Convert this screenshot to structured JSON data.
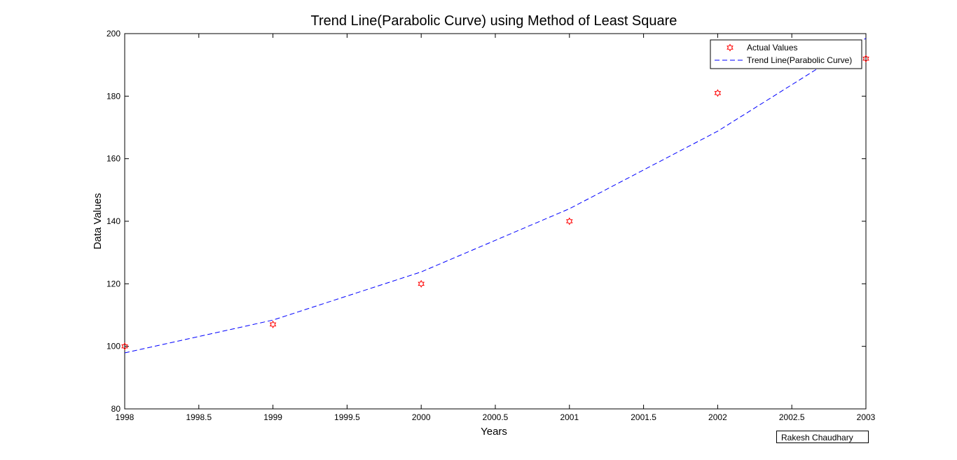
{
  "chart_data": {
    "type": "line",
    "title": "Trend Line(Parabolic Curve) using Method of Least Square",
    "xlabel": "Years",
    "ylabel": "Data Values",
    "xlim": [
      1998,
      2003
    ],
    "ylim": [
      80,
      200
    ],
    "xticks": [
      1998,
      1998.5,
      1999,
      1999.5,
      2000,
      2000.5,
      2001,
      2001.5,
      2002,
      2002.5,
      2003
    ],
    "xtick_labels": [
      "1998",
      "1998.5",
      "1999",
      "1999.5",
      "2000",
      "2000.5",
      "2001",
      "2001.5",
      "2002",
      "2002.5",
      "2003"
    ],
    "yticks": [
      80,
      100,
      120,
      140,
      160,
      180,
      200
    ],
    "ytick_labels": [
      "80",
      "100",
      "120",
      "140",
      "160",
      "180",
      "200"
    ],
    "grid": false,
    "legend_position": "top-right",
    "series": [
      {
        "name": "Actual Values",
        "style": "markers",
        "marker": "hexagram",
        "color": "#ff0000",
        "x": [
          1998,
          1999,
          2000,
          2001,
          2002,
          2003
        ],
        "y": [
          100,
          107,
          120,
          140,
          181,
          192
        ]
      },
      {
        "name": "Trend Line(Parabolic Curve)",
        "style": "dashed",
        "color": "#0000ff",
        "x": [
          1998,
          1999,
          2000,
          2001,
          2002,
          2003
        ],
        "y": [
          97.9,
          108.4,
          123.8,
          144.0,
          168.8,
          198.5
        ]
      }
    ]
  },
  "annotation": {
    "credit": "Rakesh Chaudhary"
  }
}
